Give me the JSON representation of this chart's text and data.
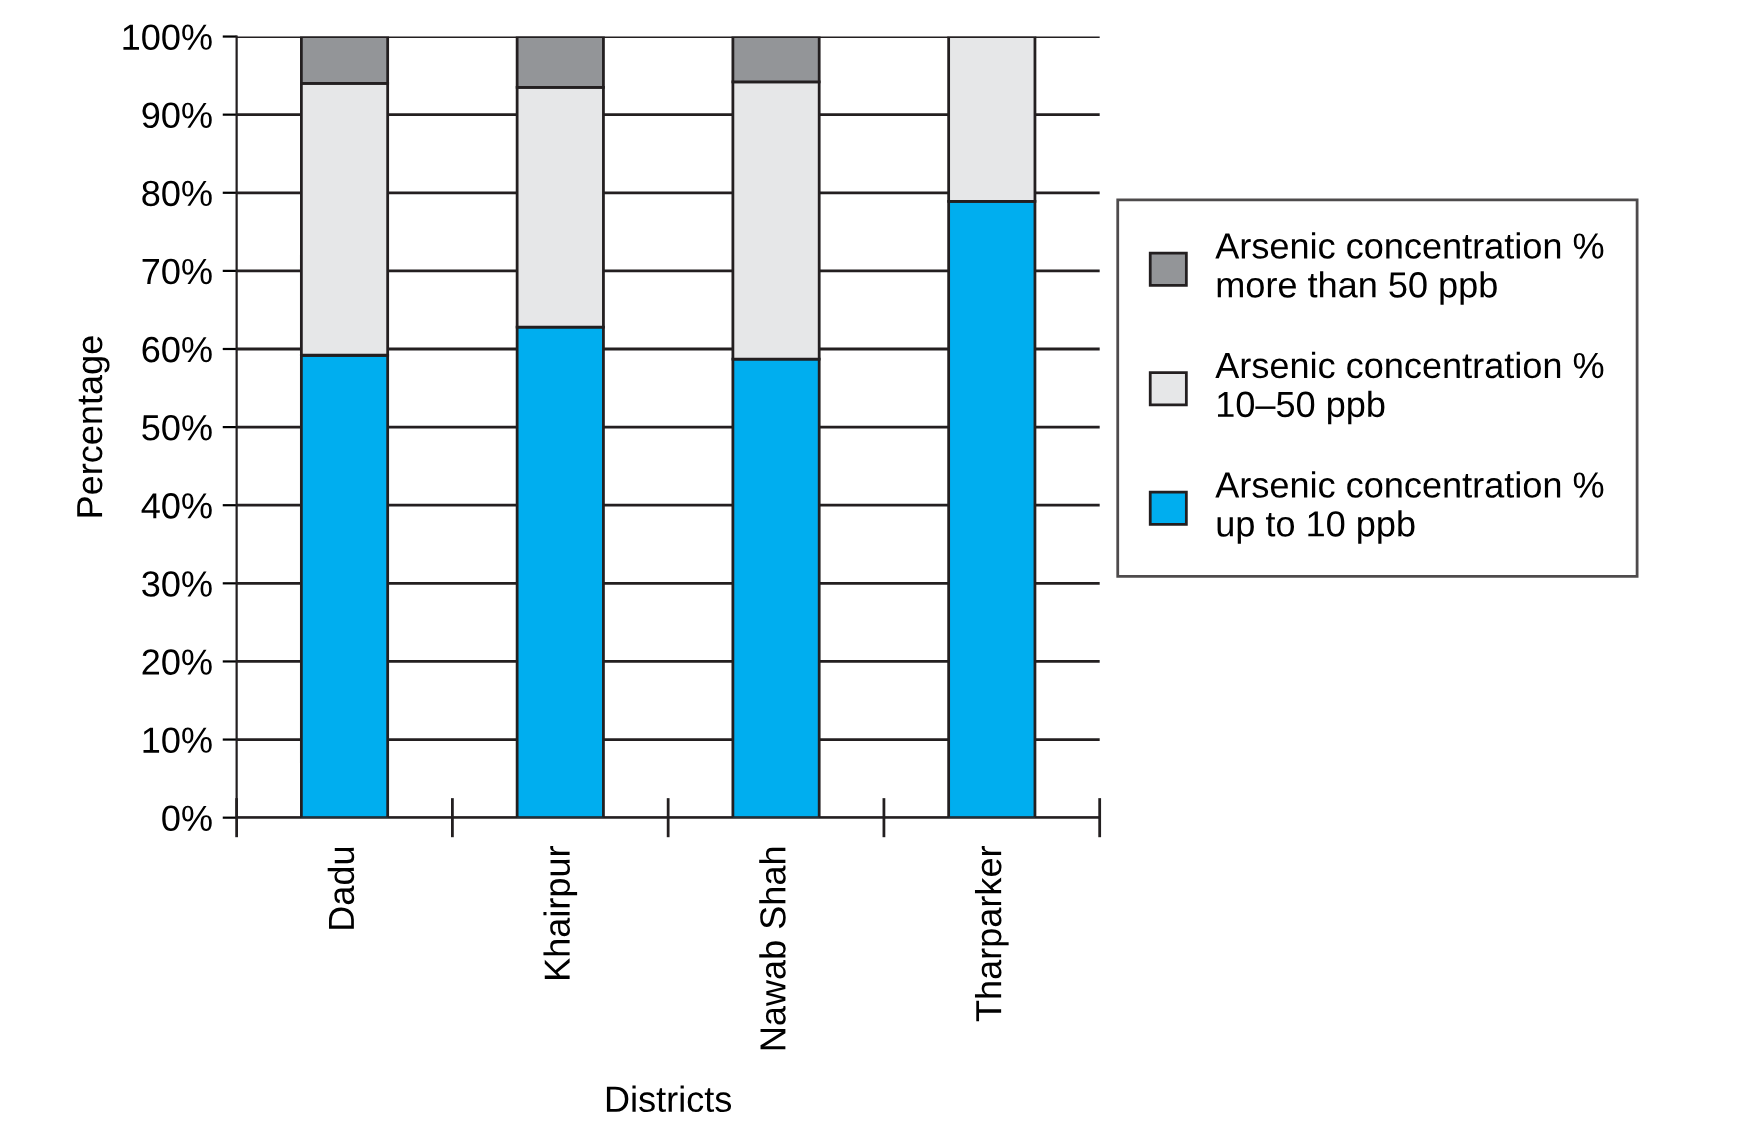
{
  "chart_data": {
    "type": "bar",
    "stacked": true,
    "xlabel": "Districts",
    "ylabel": "Percentage",
    "categories": [
      "Dadu",
      "Khairpur",
      "Nawab Shah",
      "Tharparker"
    ],
    "series": [
      {
        "name": "Arsenic concentration % up to 10 ppb",
        "color": "#00aeef",
        "values": [
          59.2,
          62.8,
          58.7,
          78.9
        ]
      },
      {
        "name": "Arsenic concentration % 10–50 ppb",
        "color": "#e6e7e8",
        "values": [
          34.8,
          30.7,
          35.5,
          21.1
        ]
      },
      {
        "name": "Arsenic concentration % more than 50 ppb",
        "color": "#939598",
        "values": [
          6.0,
          6.5,
          5.8,
          null
        ]
      }
    ],
    "ylim": [
      0,
      100
    ],
    "yticks": [
      {
        "value": 0,
        "label": "0%"
      },
      {
        "value": 10,
        "label": "10%"
      },
      {
        "value": 20,
        "label": "20%"
      },
      {
        "value": 30,
        "label": "30%"
      },
      {
        "value": 40,
        "label": "40%"
      },
      {
        "value": 50,
        "label": "50%"
      },
      {
        "value": 60,
        "label": "60%"
      },
      {
        "value": 70,
        "label": "70%"
      },
      {
        "value": 80,
        "label": "80%"
      },
      {
        "value": 90,
        "label": "90%"
      },
      {
        "value": 100,
        "label": "100%"
      }
    ],
    "grid": "y",
    "legend": "right"
  }
}
